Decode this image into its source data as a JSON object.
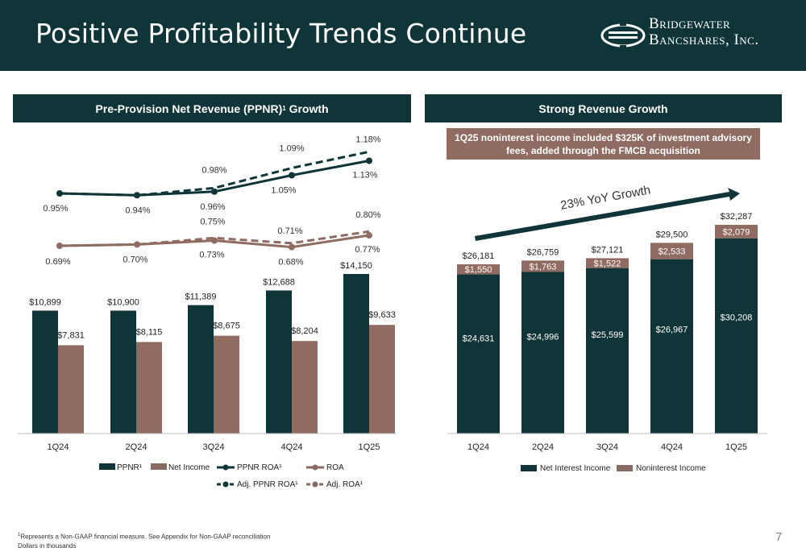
{
  "header": {
    "title": "Positive Profitability Trends Continue"
  },
  "logo": {
    "line1": "Bridgewater",
    "line2": "Bancshares, Inc."
  },
  "left_panel": {
    "title": "Pre-Provision Net Revenue (PPNR)",
    "title_sup": "1",
    "title_suffix": " Growth"
  },
  "right_panel": {
    "title": "Strong Revenue Growth",
    "callout": "1Q25 noninterest income included $325K of investment advisory fees, added through the FMCB acquisition",
    "growth_label": "23% YoY Growth"
  },
  "colors": {
    "dark_teal": "#0f3538",
    "brown": "#8f6b62",
    "legend_brown": "#866a63"
  },
  "footnote": {
    "line1": "Represents a Non-GAAP financial measure. See Appendix for Non-GAAP reconciliation",
    "line1_sup": "1",
    "line2": "Dollars in thousands"
  },
  "page_number": "7",
  "chart_data": [
    {
      "type": "bar",
      "categories": [
        "1Q24",
        "2Q24",
        "3Q24",
        "4Q24",
        "1Q25"
      ],
      "series": [
        {
          "name": "PPNR¹",
          "values": [
            10899,
            10900,
            11389,
            12688,
            14150
          ],
          "labels": [
            "$10,899",
            "$10,900",
            "$11,389",
            "$12,688",
            "$14,150"
          ],
          "color": "#0f3538"
        },
        {
          "name": "Net Income",
          "values": [
            7831,
            8115,
            8675,
            8204,
            9633
          ],
          "labels": [
            "$7,831",
            "$8,115",
            "$8,675",
            "$8,204",
            "$9,633"
          ],
          "color": "#8f6b62"
        }
      ],
      "lines": [
        {
          "name": "PPNR ROA¹",
          "values": [
            0.95,
            0.94,
            0.96,
            1.05,
            1.13
          ],
          "labels": [
            "0.95%",
            "0.94%",
            "0.96%",
            "1.05%",
            "1.13%"
          ],
          "color": "#0f3538",
          "style": "solid"
        },
        {
          "name": "Adj. PPNR ROA¹",
          "values": [
            0.95,
            0.94,
            0.98,
            1.09,
            1.18
          ],
          "labels": [
            "",
            "",
            "0.98%",
            "1.09%",
            "1.18%"
          ],
          "color": "#0f3538",
          "style": "dashed"
        },
        {
          "name": "ROA",
          "values": [
            0.69,
            0.7,
            0.73,
            0.68,
            0.77
          ],
          "labels": [
            "0.69%",
            "0.70%",
            "0.73%",
            "0.68%",
            "0.77%"
          ],
          "color": "#8f6b62",
          "style": "solid"
        },
        {
          "name": "Adj. ROA¹",
          "values": [
            0.69,
            0.7,
            0.75,
            0.71,
            0.8
          ],
          "labels": [
            "",
            "",
            "0.75%",
            "0.71%",
            "0.80%"
          ],
          "color": "#8f6b62",
          "style": "dashed"
        }
      ],
      "legend": [
        "PPNR¹",
        "Net Income",
        "PPNR ROA¹",
        "ROA",
        "Adj. PPNR ROA¹",
        "Adj. ROA¹"
      ]
    },
    {
      "type": "bar",
      "stacked": true,
      "categories": [
        "1Q24",
        "2Q24",
        "3Q24",
        "4Q24",
        "1Q25"
      ],
      "series": [
        {
          "name": "Net Interest Income",
          "values": [
            24631,
            24996,
            25599,
            26967,
            30208
          ],
          "labels": [
            "$24,631",
            "$24,996",
            "$25,599",
            "$26,967",
            "$30,208"
          ],
          "color": "#0f3538"
        },
        {
          "name": "Noninterest Income",
          "values": [
            1550,
            1763,
            1522,
            2533,
            2079
          ],
          "labels": [
            "$1,550",
            "$1,763",
            "$1,522",
            "$2,533",
            "$2,079"
          ],
          "color": "#8f6b62"
        }
      ],
      "totals": [
        "$26,181",
        "$26,759",
        "$27,121",
        "$29,500",
        "$32,287"
      ],
      "legend": [
        "Net Interest Income",
        "Noninterest Income"
      ]
    }
  ]
}
